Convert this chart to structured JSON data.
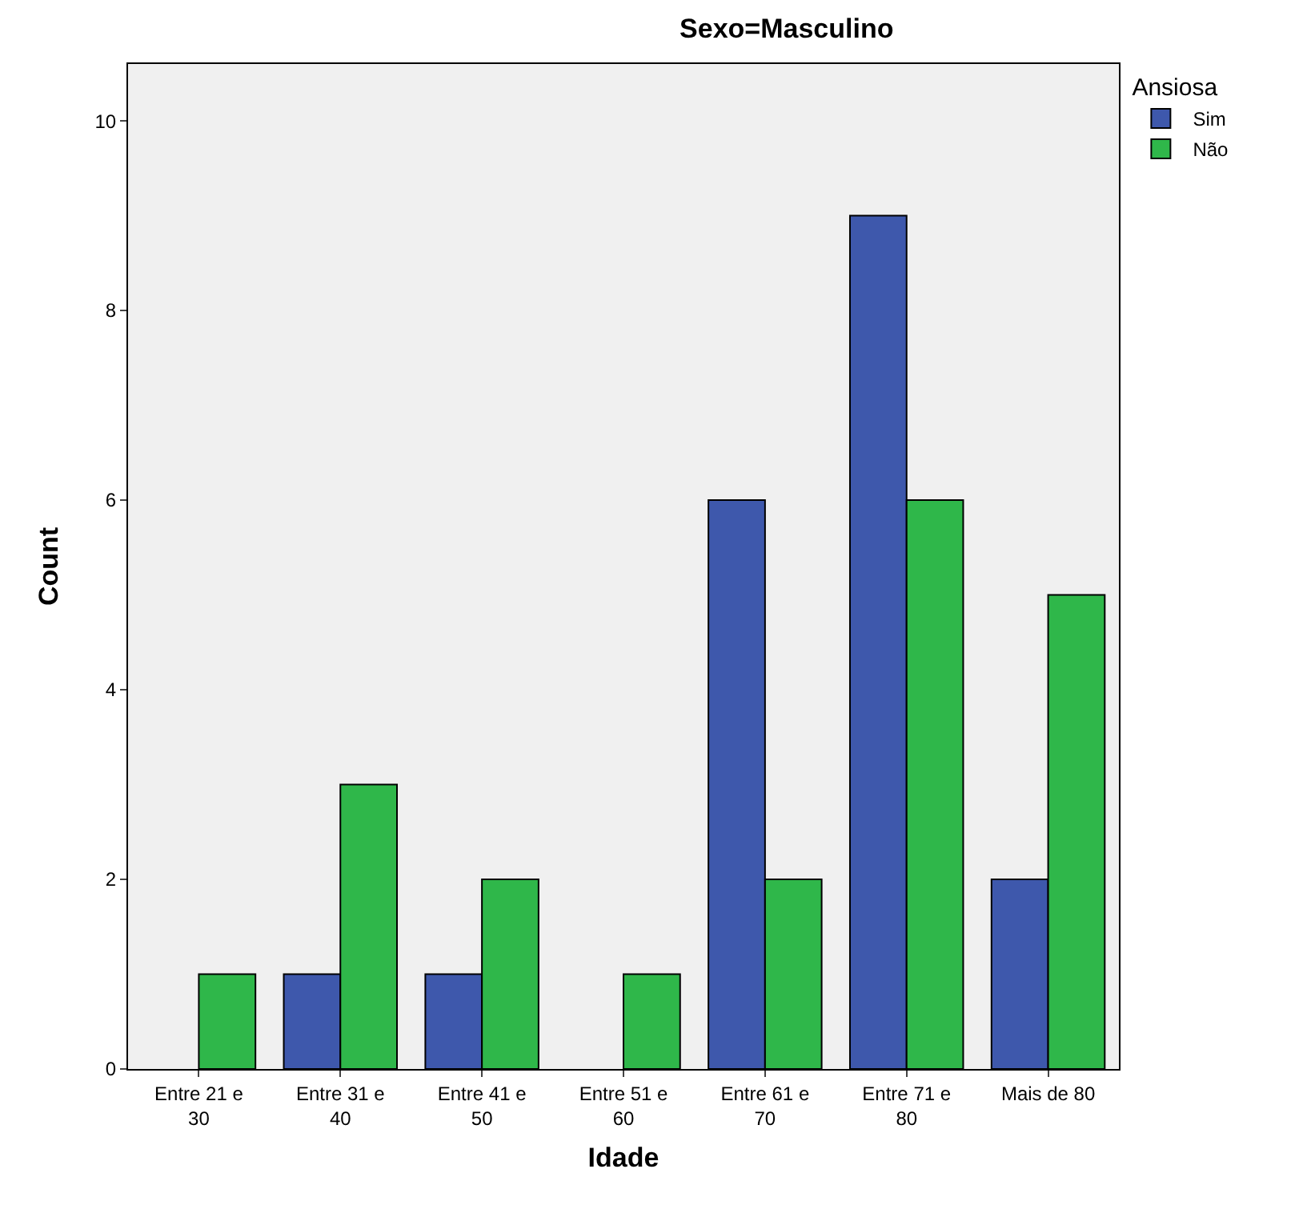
{
  "chart_data": {
    "type": "bar",
    "title": "Sexo=Masculino",
    "xlabel": "Idade",
    "ylabel": "Count",
    "legend_title": "Ansiosa",
    "categories": [
      "Entre 21 e 30",
      "Entre 31 e 40",
      "Entre 41 e 50",
      "Entre 51 e 60",
      "Entre 61 e 70",
      "Entre 71 e 80",
      "Mais de 80"
    ],
    "series": [
      {
        "name": "Sim",
        "color": "#3e58ac",
        "values": [
          null,
          1,
          1,
          null,
          6,
          9,
          2
        ]
      },
      {
        "name": "Não",
        "color": "#2fb74a",
        "values": [
          1,
          3,
          2,
          1,
          2,
          6,
          5
        ]
      }
    ],
    "ylim": [
      0,
      10.6
    ],
    "yticks": [
      0,
      2,
      4,
      6,
      8,
      10
    ],
    "grid": false,
    "legend": "top right"
  }
}
